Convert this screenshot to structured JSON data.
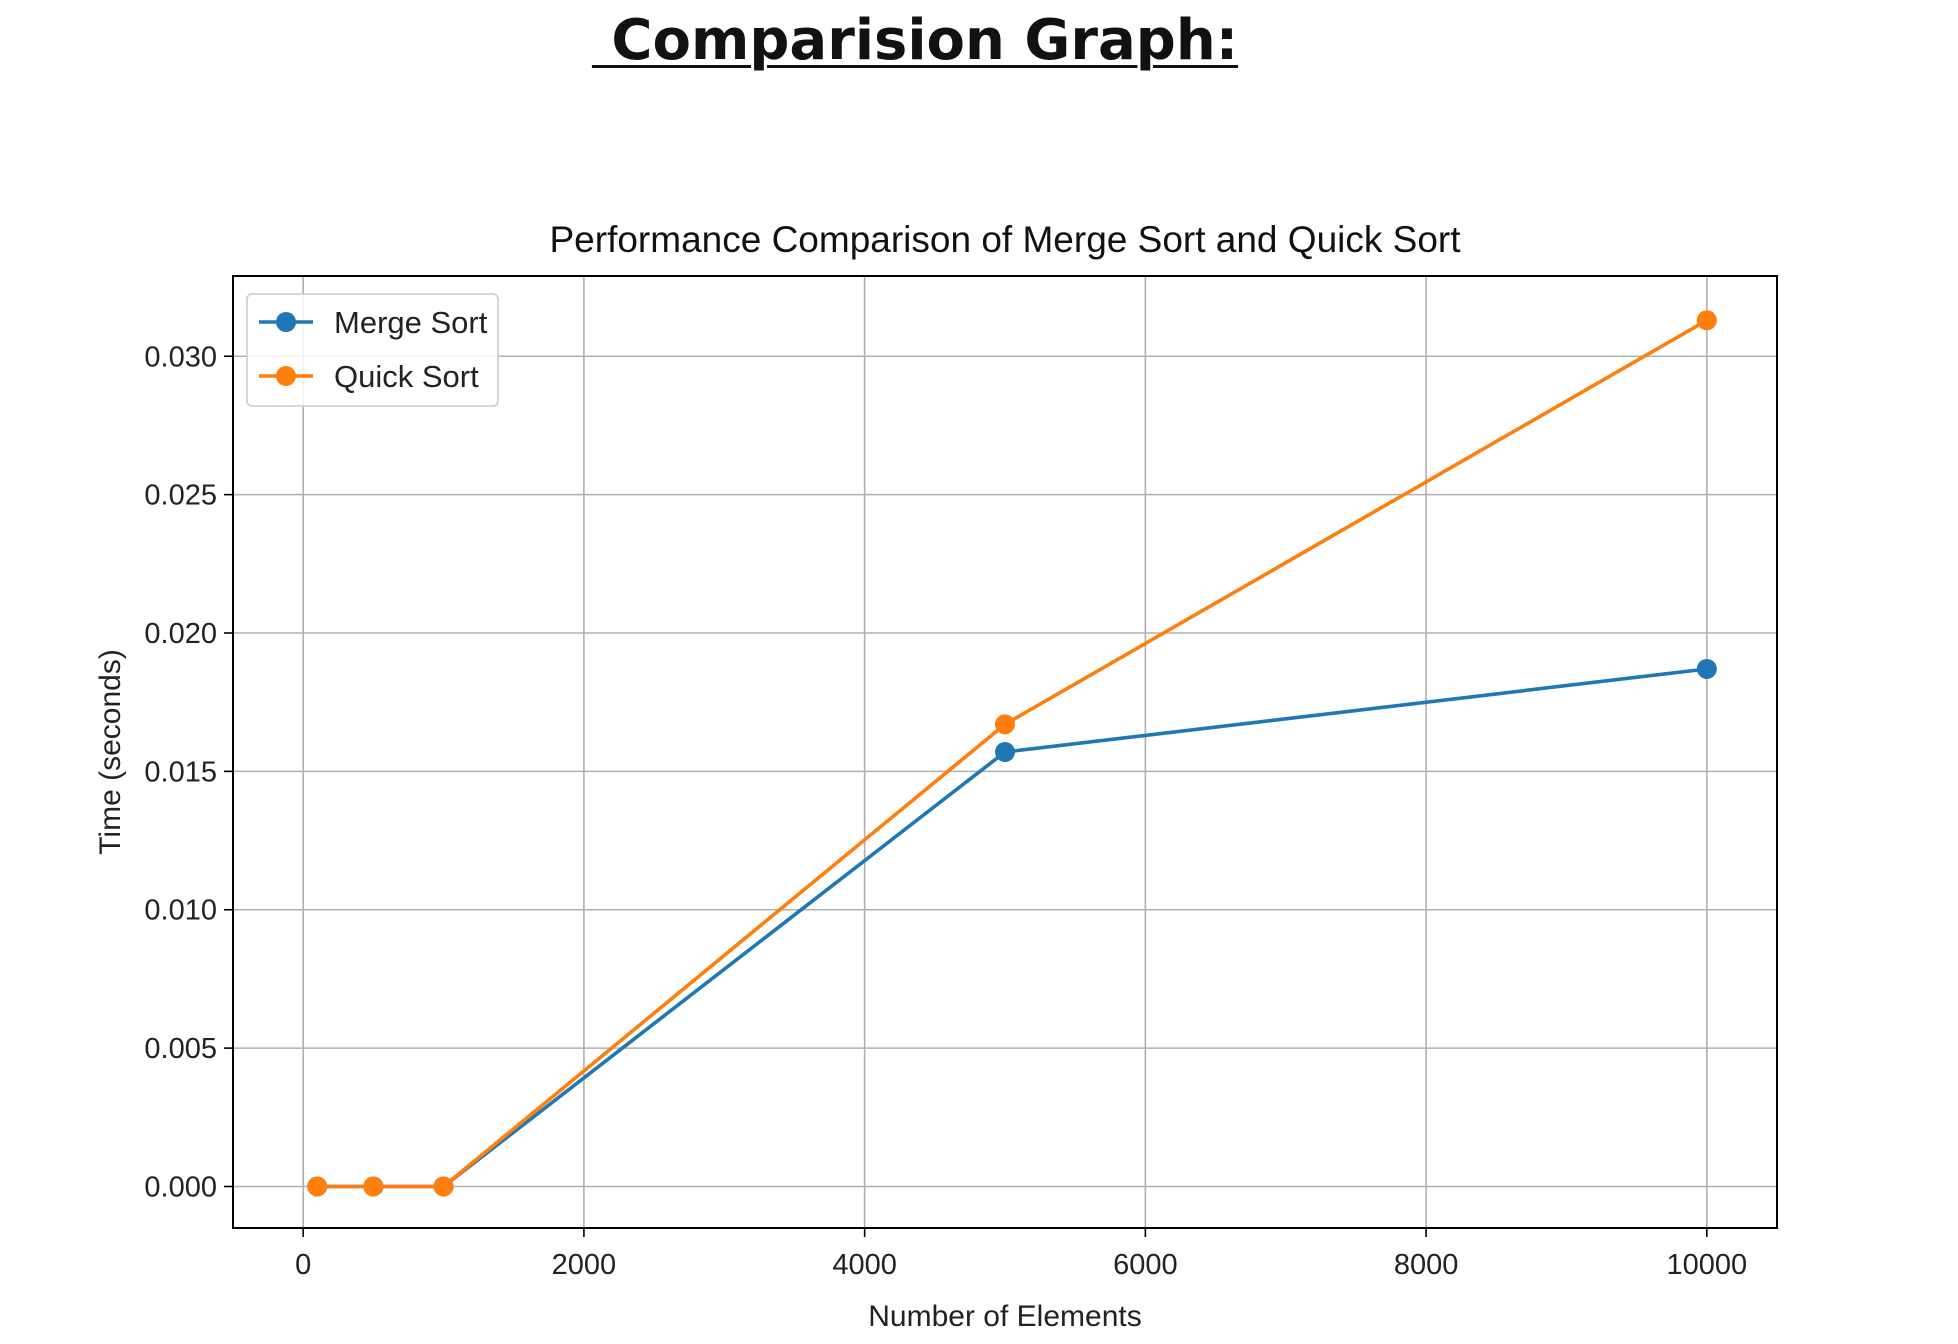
{
  "page": {
    "heading": " Comparision Graph:"
  },
  "chart_data": {
    "type": "line",
    "title": "Performance Comparison of Merge Sort and Quick Sort",
    "xlabel": "Number of Elements",
    "ylabel": "Time (seconds)",
    "xlim": [
      -500,
      10500
    ],
    "ylim": [
      -0.0015,
      0.0329
    ],
    "xticks": [
      0,
      2000,
      4000,
      6000,
      8000,
      10000
    ],
    "xtick_labels": [
      "0",
      "2000",
      "4000",
      "6000",
      "8000",
      "10000"
    ],
    "yticks": [
      0.0,
      0.005,
      0.01,
      0.015,
      0.02,
      0.025,
      0.03
    ],
    "ytick_labels": [
      "0.000",
      "0.005",
      "0.010",
      "0.015",
      "0.020",
      "0.025",
      "0.030"
    ],
    "grid": true,
    "legend_position": "top-left",
    "x": [
      100,
      500,
      1000,
      5000,
      10000
    ],
    "series": [
      {
        "name": "Merge Sort",
        "color": "#1f77b4",
        "values": [
          0.0,
          0.0,
          0.0,
          0.0157,
          0.0187
        ]
      },
      {
        "name": "Quick Sort",
        "color": "#ff7f0e",
        "values": [
          0.0,
          0.0,
          0.0,
          0.0167,
          0.0313
        ]
      }
    ]
  }
}
